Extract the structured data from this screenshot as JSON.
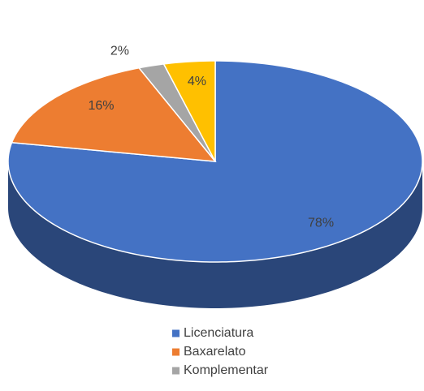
{
  "chart_data": {
    "type": "pie",
    "categories": [
      "Licenciatura",
      "Baxarelato",
      "Komplementar",
      null
    ],
    "values": [
      78,
      16,
      2,
      4
    ],
    "value_labels": [
      "78%",
      "16%",
      "2%",
      "4%"
    ],
    "colors": [
      "#4472c4",
      "#ed7d31",
      "#a5a5a5",
      "#ffc000"
    ],
    "legend": "bottom"
  }
}
